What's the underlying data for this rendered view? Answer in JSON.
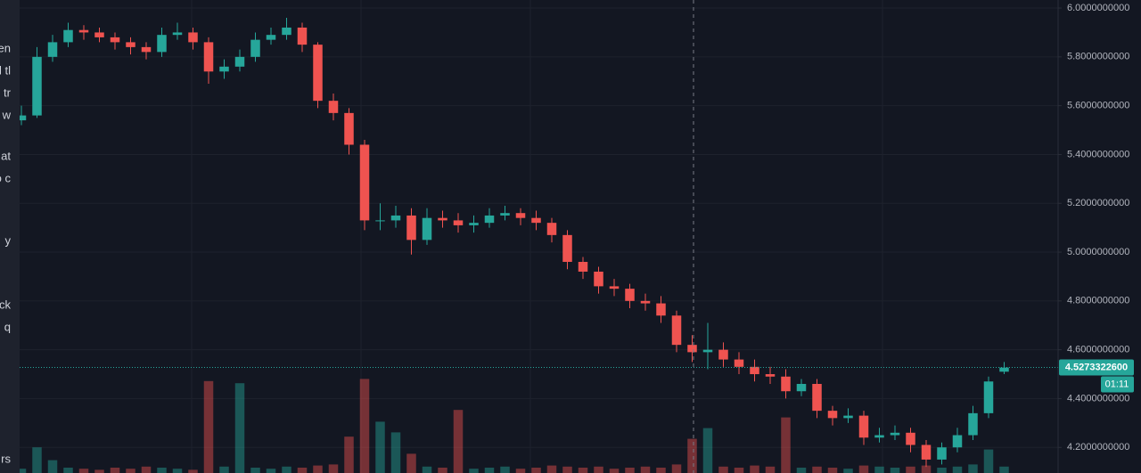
{
  "chart_data": {
    "type": "candlestick",
    "up_color": "#26a69a",
    "down_color": "#ef5350",
    "grid": true,
    "ylim": [
      4.095,
      6.033
    ],
    "yticks": [
      {
        "value": 6.0,
        "label": "6.0000000000"
      },
      {
        "value": 5.8,
        "label": "5.8000000000"
      },
      {
        "value": 5.6,
        "label": "5.6000000000"
      },
      {
        "value": 5.4,
        "label": "5.4000000000"
      },
      {
        "value": 5.2,
        "label": "5.2000000000"
      },
      {
        "value": 5.0,
        "label": "5.0000000000"
      },
      {
        "value": 4.8,
        "label": "4.8000000000"
      },
      {
        "value": 4.6,
        "label": "4.6000000000"
      },
      {
        "value": 4.4,
        "label": "4.4000000000"
      },
      {
        "value": 4.2,
        "label": "4.2000000000"
      }
    ],
    "last_price": {
      "value": 4.52733226,
      "label": "4.5273322600"
    },
    "countdown": "01:11",
    "open": [
      5.54,
      5.56,
      5.8,
      5.86,
      5.91,
      5.9,
      5.88,
      5.86,
      5.84,
      5.82,
      5.89,
      5.9,
      5.86,
      5.74,
      5.76,
      5.8,
      5.87,
      5.89,
      5.92,
      5.85,
      5.62,
      5.57,
      5.44,
      5.13,
      5.13,
      5.15,
      5.05,
      5.14,
      5.13,
      5.11,
      5.12,
      5.15,
      5.16,
      5.14,
      5.12,
      5.07,
      4.96,
      4.92,
      4.86,
      4.85,
      4.8,
      4.79,
      4.74,
      4.62,
      4.59,
      4.6,
      4.56,
      4.53,
      4.5,
      4.49,
      4.43,
      4.46,
      4.35,
      4.32,
      4.33,
      4.24,
      4.25,
      4.26,
      4.21,
      4.15,
      4.2,
      4.25,
      4.34,
      4.51
    ],
    "high": [
      5.6,
      5.84,
      5.89,
      5.94,
      5.93,
      5.92,
      5.9,
      5.88,
      5.86,
      5.92,
      5.94,
      5.92,
      5.88,
      5.79,
      5.83,
      5.9,
      5.92,
      5.96,
      5.94,
      5.86,
      5.65,
      5.59,
      5.46,
      5.2,
      5.19,
      5.18,
      5.18,
      5.17,
      5.16,
      5.15,
      5.18,
      5.19,
      5.18,
      5.17,
      5.14,
      5.09,
      4.98,
      4.94,
      4.89,
      4.87,
      4.83,
      4.82,
      4.76,
      4.66,
      4.71,
      4.63,
      4.59,
      4.56,
      4.53,
      4.52,
      4.48,
      4.48,
      4.37,
      4.36,
      4.35,
      4.28,
      4.29,
      4.28,
      4.23,
      4.22,
      4.28,
      4.37,
      4.49,
      4.55
    ],
    "low": [
      5.52,
      5.55,
      5.78,
      5.84,
      5.87,
      5.86,
      5.83,
      5.81,
      5.79,
      5.8,
      5.87,
      5.83,
      5.69,
      5.71,
      5.74,
      5.78,
      5.85,
      5.87,
      5.82,
      5.59,
      5.54,
      5.4,
      5.09,
      5.09,
      5.1,
      4.99,
      5.03,
      5.1,
      5.08,
      5.08,
      5.1,
      5.13,
      5.11,
      5.09,
      5.04,
      4.93,
      4.89,
      4.83,
      4.82,
      4.77,
      4.76,
      4.71,
      4.59,
      4.55,
      4.52,
      4.53,
      4.5,
      4.47,
      4.46,
      4.4,
      4.41,
      4.32,
      4.29,
      4.3,
      4.21,
      4.22,
      4.23,
      4.18,
      4.12,
      4.13,
      4.18,
      4.23,
      4.32,
      4.5
    ],
    "close": [
      5.56,
      5.8,
      5.86,
      5.91,
      5.9,
      5.88,
      5.86,
      5.84,
      5.82,
      5.89,
      5.9,
      5.86,
      5.74,
      5.76,
      5.8,
      5.87,
      5.89,
      5.92,
      5.85,
      5.62,
      5.57,
      5.44,
      5.13,
      5.13,
      5.15,
      5.05,
      5.14,
      5.13,
      5.11,
      5.12,
      5.15,
      5.16,
      5.14,
      5.12,
      5.07,
      4.96,
      4.92,
      4.86,
      4.85,
      4.8,
      4.79,
      4.74,
      4.62,
      4.59,
      4.6,
      4.56,
      4.53,
      4.5,
      4.49,
      4.43,
      4.46,
      4.35,
      4.32,
      4.33,
      4.24,
      4.25,
      4.26,
      4.21,
      4.15,
      4.2,
      4.25,
      4.34,
      4.47,
      4.527
    ],
    "volume_lim": [
      0,
      100
    ],
    "volume": [
      4,
      24,
      12,
      5,
      4,
      3,
      5,
      4,
      6,
      5,
      4,
      3,
      86,
      6,
      84,
      5,
      4,
      6,
      5,
      7,
      8,
      34,
      88,
      48,
      38,
      18,
      6,
      5,
      59,
      4,
      5,
      6,
      4,
      5,
      7,
      6,
      5,
      6,
      4,
      5,
      6,
      5,
      8,
      32,
      42,
      6,
      5,
      7,
      6,
      52,
      5,
      6,
      5,
      4,
      7,
      6,
      5,
      6,
      7,
      5,
      6,
      8,
      22,
      6
    ],
    "side_panel_texts": [
      "en",
      "l tl",
      "tr",
      "w",
      "at",
      "o c",
      "y",
      "ck",
      "q",
      "rs"
    ]
  }
}
